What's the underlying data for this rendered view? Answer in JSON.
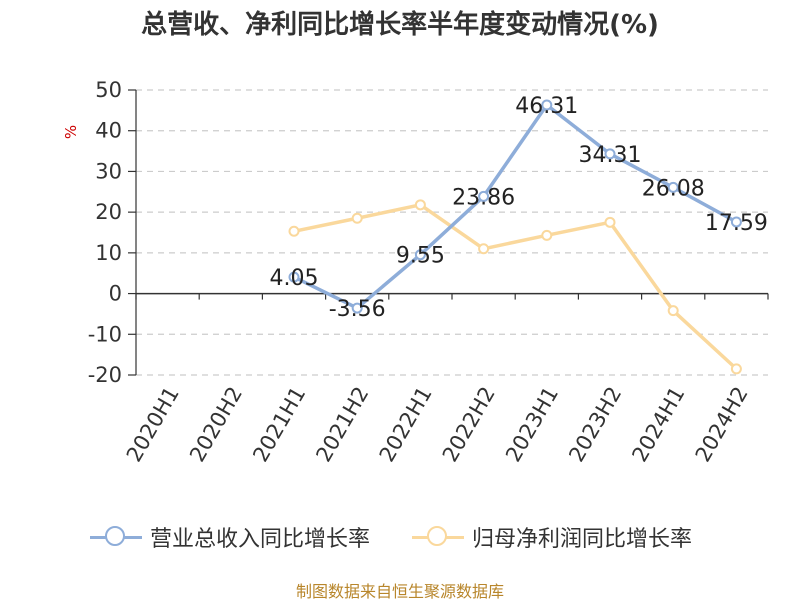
{
  "chart_data": {
    "type": "line",
    "title": "总营收、净利同比增长率半年度变动情况(%)",
    "ylabel": "%",
    "xlabel": "",
    "categories": [
      "2020H1",
      "2020H2",
      "2021H1",
      "2021H2",
      "2022H1",
      "2022H2",
      "2023H1",
      "2023H2",
      "2024H1",
      "2024H2"
    ],
    "ylim": [
      -20,
      50
    ],
    "yticks": [
      "50",
      "40",
      "30",
      "20",
      "10",
      "0",
      "-10",
      "-20"
    ],
    "grid": true,
    "legend_position": "bottom",
    "series": [
      {
        "name": "营业总收入同比增长率",
        "color": "#8eadd9",
        "values": [
          null,
          null,
          4.05,
          -3.56,
          9.55,
          23.86,
          46.31,
          34.31,
          26.08,
          17.59
        ],
        "labels": [
          "",
          "",
          "4.05",
          "-3.56",
          "9.55",
          "23.86",
          "46.31",
          "34.31",
          "26.08",
          "17.59"
        ]
      },
      {
        "name": "归母净利润同比增长率",
        "color": "#fad89c",
        "values": [
          null,
          null,
          15.3,
          18.5,
          21.8,
          11.0,
          14.3,
          17.5,
          -4.2,
          -18.5
        ],
        "labels": []
      }
    ]
  },
  "source": "制图数据来自恒生聚源数据库"
}
